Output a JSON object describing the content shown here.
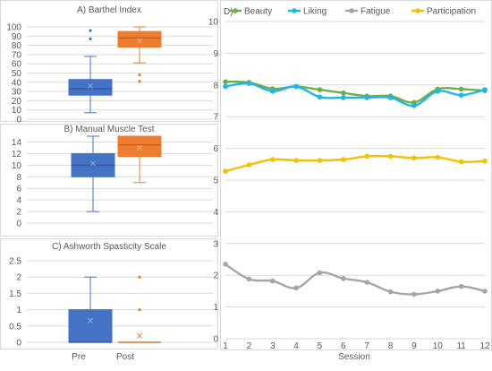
{
  "chart_data": [
    {
      "type": "box",
      "title": "A) Barthel Index",
      "ylim": [
        0,
        100
      ],
      "yticks": [
        0,
        10,
        20,
        30,
        40,
        50,
        60,
        70,
        80,
        90,
        100
      ],
      "grid": true,
      "series": [
        {
          "name": "Pre",
          "color": "#4472c4",
          "min": 7,
          "q1": 26,
          "median": 33,
          "q3": 43,
          "max": 68,
          "mean": 36,
          "outliers": [
            87,
            96
          ]
        },
        {
          "name": "Post",
          "color": "#ed7d31",
          "min": 61,
          "q1": 78,
          "median": 88,
          "q3": 95,
          "max": 100,
          "mean": 85,
          "outliers": [
            41,
            48
          ]
        }
      ]
    },
    {
      "type": "box",
      "title": "B) Manual Muscle Test",
      "ylim": [
        0,
        15
      ],
      "yticks": [
        0,
        2,
        4,
        6,
        8,
        10,
        12,
        14
      ],
      "grid": true,
      "series": [
        {
          "name": "Pre",
          "color": "#4472c4",
          "min": 2,
          "q1": 8,
          "median": 10,
          "q3": 12,
          "max": 15,
          "mean": 10.3,
          "outliers": []
        },
        {
          "name": "Post",
          "color": "#ed7d31",
          "min": 7,
          "q1": 11.5,
          "median": 13.5,
          "q3": 15,
          "max": 15,
          "mean": 13,
          "outliers": []
        }
      ]
    },
    {
      "type": "box",
      "title": "C) Ashworth Spasticity Scale",
      "ylim": [
        0,
        2.5
      ],
      "yticks": [
        "0",
        "0.5",
        "1",
        "1.5",
        "2",
        "2.5"
      ],
      "grid": true,
      "categories": [
        "Pre",
        "Post"
      ],
      "series": [
        {
          "name": "Pre",
          "color": "#4472c4",
          "min": 0,
          "q1": 0,
          "median": 0,
          "q3": 1,
          "max": 2,
          "mean": 0.67,
          "outliers": []
        },
        {
          "name": "Post",
          "color": "#ed7d31",
          "min": 0,
          "q1": 0,
          "median": 0,
          "q3": 0,
          "max": 0,
          "mean": 0.2,
          "outliers": [
            1,
            2
          ]
        }
      ]
    },
    {
      "type": "line",
      "title": "D)",
      "xlabel": "Session",
      "x": [
        1,
        2,
        3,
        4,
        5,
        6,
        7,
        8,
        9,
        10,
        11,
        12
      ],
      "ylim": [
        0,
        10
      ],
      "yticks": [
        0,
        1,
        2,
        3,
        4,
        5,
        6,
        7,
        8,
        9,
        10
      ],
      "grid": true,
      "legend_position": "top",
      "series": [
        {
          "name": "Beauty",
          "color": "#70ad47",
          "values": [
            8.1,
            8.08,
            7.88,
            7.95,
            7.85,
            7.75,
            7.65,
            7.65,
            7.45,
            7.87,
            7.87,
            7.82
          ]
        },
        {
          "name": "Liking",
          "color": "#1fb6e8",
          "values": [
            7.95,
            8.05,
            7.8,
            7.95,
            7.62,
            7.6,
            7.6,
            7.6,
            7.35,
            7.8,
            7.68,
            7.85
          ]
        },
        {
          "name": "Fatigue",
          "color": "#a5a5a5",
          "values": [
            2.35,
            1.88,
            1.82,
            1.6,
            2.08,
            1.9,
            1.78,
            1.48,
            1.4,
            1.5,
            1.65,
            1.5
          ]
        },
        {
          "name": "Participation",
          "color": "#f5c000",
          "values": [
            5.28,
            5.48,
            5.65,
            5.62,
            5.62,
            5.65,
            5.75,
            5.75,
            5.7,
            5.72,
            5.58,
            5.6
          ]
        }
      ]
    }
  ]
}
